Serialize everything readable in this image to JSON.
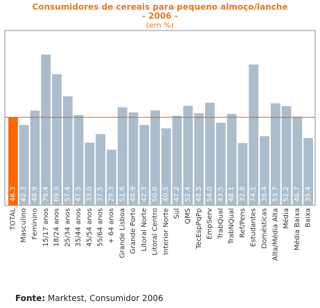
{
  "colors": {
    "title": "#ee7722",
    "bar": "#abbdcc",
    "highlight_bar": "#ff6600",
    "reference_line": "#e05a10",
    "plot_border": "#888888",
    "plot_background": "#ffffff"
  },
  "source": {
    "label": "Fonte:",
    "text": "Marktest, Consumidor 2006"
  },
  "chart_data": {
    "type": "bar",
    "title": "Consumidores de cereais para pequeno almoço/lanche",
    "subtitle": "- 2006 -",
    "unit_note": "(em %)",
    "categories": [
      "TOTAL",
      "Masculino",
      "Feminino",
      "15/17 anos",
      "18/24 anos",
      "25/34 anos",
      "35/44 anos",
      "45/54 anos",
      "55/64 anos",
      "+ 64 anos",
      "Grande Lisboa",
      "Grande Porto",
      "Litoral Norte",
      "Litoral Centro",
      "Interior Norte",
      "Sul",
      "QMS",
      "TecEspPqPp",
      "EmpServ",
      "TrabQual",
      "TrabNQual",
      "Ref/Pens",
      "Estudantes",
      "Domésticas",
      "Alta/Média Alta",
      "Média",
      "Média Baixa",
      "Baixa"
    ],
    "values": [
      46.3,
      42.3,
      49.9,
      79.4,
      69.0,
      57.4,
      47.5,
      33.0,
      37.5,
      29.3,
      51.6,
      48.9,
      42.3,
      50.0,
      40.5,
      47.2,
      52.4,
      48.5,
      54.0,
      43.5,
      48.1,
      32.8,
      74.1,
      36.4,
      53.7,
      52.2,
      46.7,
      35.4
    ],
    "value_labels": [
      "46.3",
      "42.3",
      "49.9",
      "79.4",
      "69.0",
      "57.4",
      "47.5",
      "33.0",
      "37.5",
      "29.3",
      "51.6",
      "48.9",
      "42.3",
      "50.0",
      "40.5",
      "47.2",
      "52.4",
      "48.5",
      "54.0",
      "43.5",
      "48.1",
      "32.8",
      "74.1",
      "36.4",
      "53.7",
      "52.2",
      "46.7",
      "35.4"
    ],
    "highlight_index": 0,
    "reference_value": 46.3,
    "ylim": [
      0,
      92
    ],
    "grid": false,
    "legend": "none"
  }
}
